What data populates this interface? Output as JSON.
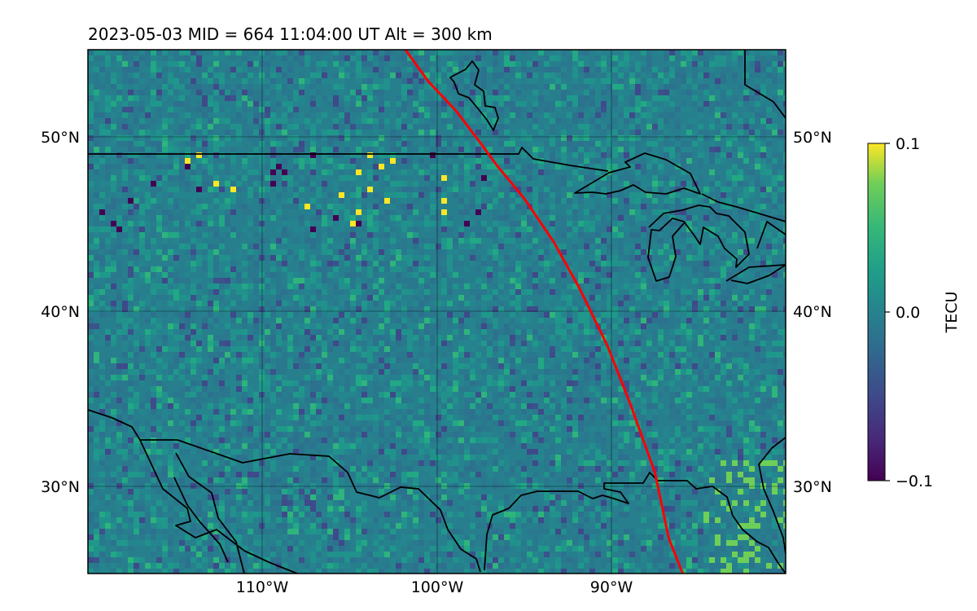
{
  "title": "2023-05-03  MID = 664    11:04:00  UT  Alt = 300 km",
  "map": {
    "lon_range": [
      -120,
      -80
    ],
    "lat_range": [
      25,
      55
    ],
    "lat_ticks": [
      {
        "value": 50,
        "label": "50°N"
      },
      {
        "value": 40,
        "label": "40°N"
      },
      {
        "value": 30,
        "label": "30°N"
      }
    ],
    "lon_ticks": [
      {
        "value": -110,
        "label": "110°W"
      },
      {
        "value": -100,
        "label": "100°W"
      },
      {
        "value": -90,
        "label": "90°W"
      }
    ],
    "gridlines": true,
    "colormap": "viridis",
    "track_color": "#ff0000",
    "coastline_color": "#000000",
    "satellite_track": [
      [
        -101.8,
        55
      ],
      [
        -100.5,
        53.2
      ],
      [
        -98.9,
        51.5
      ],
      [
        -97.6,
        49.8
      ],
      [
        -96.5,
        48.3
      ],
      [
        -95.0,
        46.5
      ],
      [
        -93.3,
        44.0
      ],
      [
        -91.8,
        41.3
      ],
      [
        -90.2,
        38.0
      ],
      [
        -88.9,
        34.7
      ],
      [
        -87.5,
        30.8
      ],
      [
        -86.7,
        27.0
      ],
      [
        -85.9,
        25.0
      ]
    ]
  },
  "colorbar": {
    "label": "TECU",
    "min": -0.1,
    "max": 0.1,
    "ticks": [
      {
        "value": 0.1,
        "label": "0.1"
      },
      {
        "value": 0.0,
        "label": "0.0"
      },
      {
        "value": -0.1,
        "label": "−0.1"
      }
    ]
  }
}
